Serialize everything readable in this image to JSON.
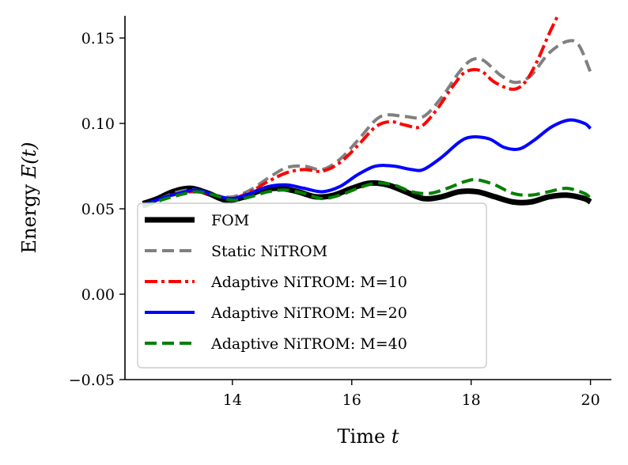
{
  "chart_data": {
    "type": "line",
    "title": "",
    "xlabel": "Time t",
    "ylabel": "Energy E(t)",
    "xlim": [
      12.2,
      20.35
    ],
    "ylim": [
      -0.05,
      0.163
    ],
    "xticks": [
      14,
      16,
      18,
      20
    ],
    "xtick_labels": [
      "14",
      "16",
      "18",
      "20"
    ],
    "yticks": [
      -0.05,
      0.0,
      0.05,
      0.1,
      0.15
    ],
    "ytick_labels": [
      "−0.05",
      "0.00",
      "0.05",
      "0.10",
      "0.15"
    ],
    "grid": false,
    "legend_position": "lower-left",
    "series": [
      {
        "name": "FOM",
        "color": "#000000",
        "style": "solid-thick",
        "points": [
          [
            12.5,
            0.053
          ],
          [
            12.75,
            0.056
          ],
          [
            13.0,
            0.06
          ],
          [
            13.3,
            0.062
          ],
          [
            13.6,
            0.059
          ],
          [
            13.9,
            0.055
          ],
          [
            14.2,
            0.057
          ],
          [
            14.5,
            0.061
          ],
          [
            14.8,
            0.062
          ],
          [
            15.1,
            0.06
          ],
          [
            15.4,
            0.057
          ],
          [
            15.7,
            0.058
          ],
          [
            16.0,
            0.062
          ],
          [
            16.3,
            0.065
          ],
          [
            16.6,
            0.064
          ],
          [
            16.9,
            0.06
          ],
          [
            17.2,
            0.056
          ],
          [
            17.5,
            0.057
          ],
          [
            17.8,
            0.06
          ],
          [
            18.1,
            0.06
          ],
          [
            18.4,
            0.057
          ],
          [
            18.7,
            0.054
          ],
          [
            19.0,
            0.054
          ],
          [
            19.3,
            0.057
          ],
          [
            19.6,
            0.058
          ],
          [
            19.9,
            0.056
          ],
          [
            20.0,
            0.054
          ]
        ]
      },
      {
        "name": "Static NiTROM",
        "color": "#808080",
        "style": "dashed",
        "points": [
          [
            12.5,
            0.052
          ],
          [
            12.8,
            0.056
          ],
          [
            13.1,
            0.06
          ],
          [
            13.4,
            0.061
          ],
          [
            13.7,
            0.058
          ],
          [
            14.0,
            0.057
          ],
          [
            14.3,
            0.061
          ],
          [
            14.6,
            0.068
          ],
          [
            14.9,
            0.074
          ],
          [
            15.2,
            0.075
          ],
          [
            15.5,
            0.073
          ],
          [
            15.8,
            0.079
          ],
          [
            16.1,
            0.09
          ],
          [
            16.4,
            0.102
          ],
          [
            16.6,
            0.105
          ],
          [
            16.9,
            0.104
          ],
          [
            17.2,
            0.104
          ],
          [
            17.5,
            0.115
          ],
          [
            17.8,
            0.13
          ],
          [
            18.0,
            0.137
          ],
          [
            18.2,
            0.137
          ],
          [
            18.5,
            0.128
          ],
          [
            18.75,
            0.124
          ],
          [
            19.0,
            0.128
          ],
          [
            19.3,
            0.141
          ],
          [
            19.6,
            0.148
          ],
          [
            19.8,
            0.146
          ],
          [
            20.0,
            0.13
          ]
        ]
      },
      {
        "name": "Adaptive NiTROM: M=10",
        "color": "#ff0000",
        "style": "dashdot",
        "points": [
          [
            12.5,
            0.052
          ],
          [
            12.8,
            0.056
          ],
          [
            13.1,
            0.059
          ],
          [
            13.4,
            0.06
          ],
          [
            13.7,
            0.058
          ],
          [
            14.0,
            0.056
          ],
          [
            14.3,
            0.06
          ],
          [
            14.6,
            0.066
          ],
          [
            14.9,
            0.071
          ],
          [
            15.2,
            0.073
          ],
          [
            15.5,
            0.072
          ],
          [
            15.8,
            0.077
          ],
          [
            16.1,
            0.087
          ],
          [
            16.4,
            0.098
          ],
          [
            16.65,
            0.101
          ],
          [
            16.9,
            0.099
          ],
          [
            17.15,
            0.098
          ],
          [
            17.4,
            0.107
          ],
          [
            17.7,
            0.122
          ],
          [
            17.9,
            0.13
          ],
          [
            18.15,
            0.131
          ],
          [
            18.4,
            0.124
          ],
          [
            18.7,
            0.12
          ],
          [
            18.9,
            0.124
          ],
          [
            19.1,
            0.136
          ],
          [
            19.3,
            0.152
          ],
          [
            19.45,
            0.163
          ]
        ]
      },
      {
        "name": "Adaptive NiTROM: M=20",
        "color": "#0000ff",
        "style": "solid",
        "points": [
          [
            12.5,
            0.052
          ],
          [
            12.8,
            0.056
          ],
          [
            13.1,
            0.059
          ],
          [
            13.4,
            0.061
          ],
          [
            13.7,
            0.058
          ],
          [
            14.0,
            0.056
          ],
          [
            14.3,
            0.059
          ],
          [
            14.6,
            0.063
          ],
          [
            14.9,
            0.064
          ],
          [
            15.2,
            0.062
          ],
          [
            15.5,
            0.06
          ],
          [
            15.8,
            0.063
          ],
          [
            16.1,
            0.07
          ],
          [
            16.4,
            0.075
          ],
          [
            16.7,
            0.075
          ],
          [
            17.0,
            0.073
          ],
          [
            17.2,
            0.073
          ],
          [
            17.5,
            0.08
          ],
          [
            17.8,
            0.089
          ],
          [
            18.0,
            0.092
          ],
          [
            18.3,
            0.091
          ],
          [
            18.55,
            0.086
          ],
          [
            18.8,
            0.085
          ],
          [
            19.05,
            0.09
          ],
          [
            19.35,
            0.098
          ],
          [
            19.65,
            0.102
          ],
          [
            19.9,
            0.1
          ],
          [
            20.0,
            0.097
          ]
        ]
      },
      {
        "name": "Adaptive NiTROM: M=40",
        "color": "#008000",
        "style": "dashed",
        "points": [
          [
            12.5,
            0.051
          ],
          [
            12.8,
            0.055
          ],
          [
            13.1,
            0.058
          ],
          [
            13.4,
            0.06
          ],
          [
            13.7,
            0.058
          ],
          [
            14.0,
            0.055
          ],
          [
            14.3,
            0.057
          ],
          [
            14.6,
            0.06
          ],
          [
            14.9,
            0.061
          ],
          [
            15.2,
            0.059
          ],
          [
            15.5,
            0.056
          ],
          [
            15.8,
            0.058
          ],
          [
            16.1,
            0.062
          ],
          [
            16.4,
            0.065
          ],
          [
            16.7,
            0.064
          ],
          [
            17.0,
            0.06
          ],
          [
            17.3,
            0.059
          ],
          [
            17.6,
            0.062
          ],
          [
            17.9,
            0.066
          ],
          [
            18.1,
            0.067
          ],
          [
            18.4,
            0.064
          ],
          [
            18.7,
            0.059
          ],
          [
            19.0,
            0.058
          ],
          [
            19.3,
            0.06
          ],
          [
            19.6,
            0.062
          ],
          [
            19.9,
            0.059
          ],
          [
            20.0,
            0.056
          ]
        ]
      }
    ]
  }
}
